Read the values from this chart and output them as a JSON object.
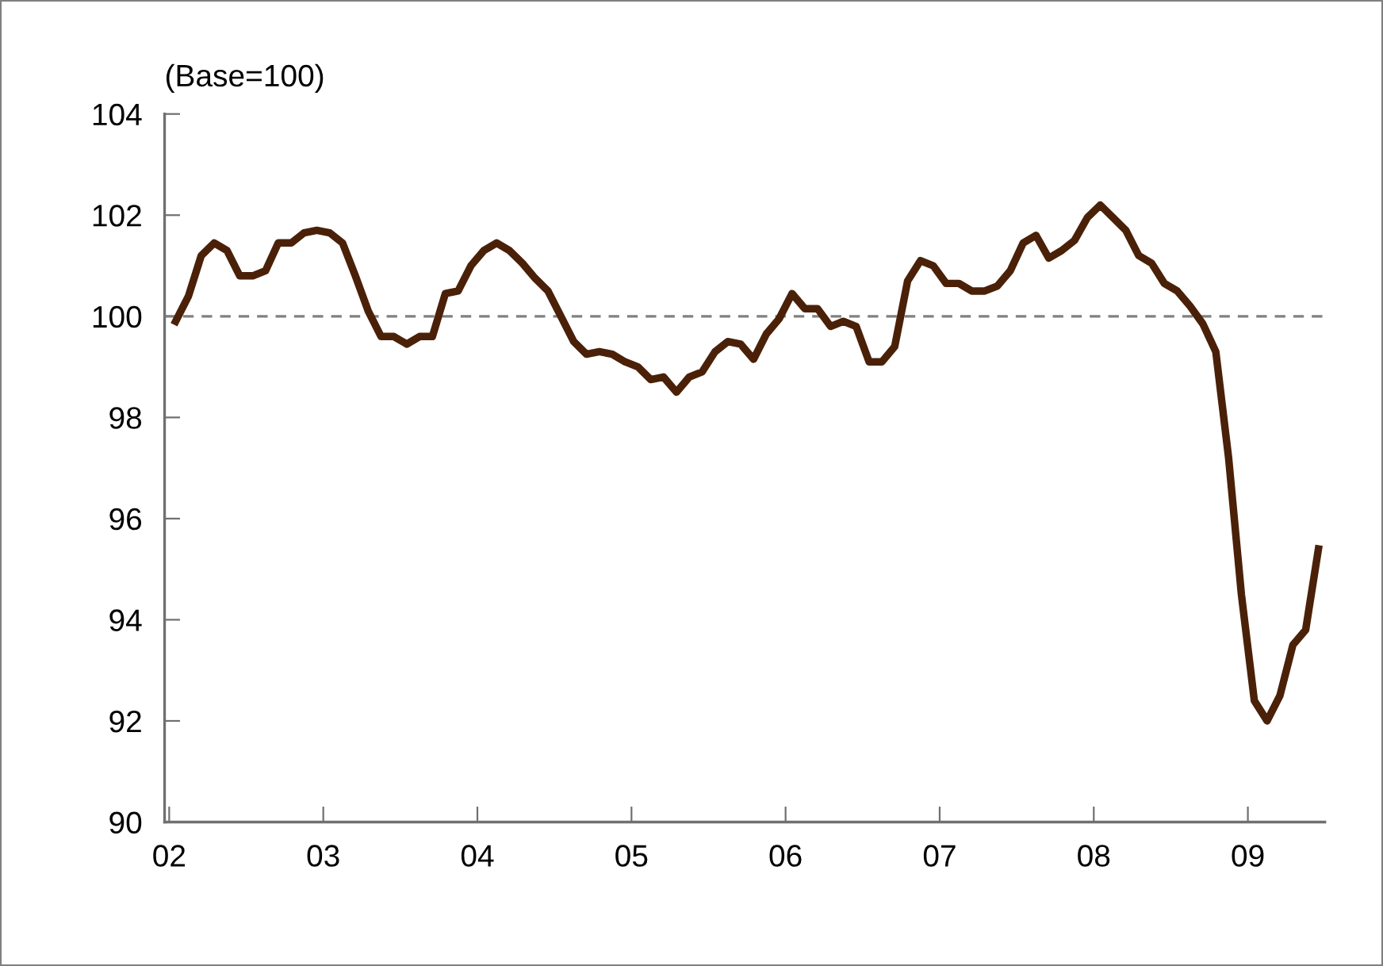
{
  "chart_data": {
    "type": "line",
    "ylabel": "(Base=100)",
    "x": [
      2002.042,
      2002.125,
      2002.208,
      2002.292,
      2002.375,
      2002.458,
      2002.542,
      2002.625,
      2002.708,
      2002.792,
      2002.875,
      2002.958,
      2003.042,
      2003.125,
      2003.208,
      2003.292,
      2003.375,
      2003.458,
      2003.542,
      2003.625,
      2003.708,
      2003.792,
      2003.875,
      2003.958,
      2004.042,
      2004.125,
      2004.208,
      2004.292,
      2004.375,
      2004.458,
      2004.542,
      2004.625,
      2004.708,
      2004.792,
      2004.875,
      2004.958,
      2005.042,
      2005.125,
      2005.208,
      2005.292,
      2005.375,
      2005.458,
      2005.542,
      2005.625,
      2005.708,
      2005.792,
      2005.875,
      2005.958,
      2006.042,
      2006.125,
      2006.208,
      2006.292,
      2006.375,
      2006.458,
      2006.542,
      2006.625,
      2006.708,
      2006.792,
      2006.875,
      2006.958,
      2007.042,
      2007.125,
      2007.208,
      2007.292,
      2007.375,
      2007.458,
      2007.542,
      2007.625,
      2007.708,
      2007.792,
      2007.875,
      2007.958,
      2008.042,
      2008.125,
      2008.208,
      2008.292,
      2008.375,
      2008.458,
      2008.542,
      2008.625,
      2008.708,
      2008.792,
      2008.875,
      2008.958,
      2009.042,
      2009.125,
      2009.208,
      2009.292,
      2009.375,
      2009.458
    ],
    "series": [
      {
        "color": "#4a2108",
        "values": [
          99.9,
          100.4,
          101.2,
          101.45,
          101.3,
          100.8,
          100.8,
          100.9,
          101.45,
          101.45,
          101.65,
          101.7,
          101.65,
          101.45,
          100.8,
          100.1,
          99.6,
          99.6,
          99.45,
          99.6,
          99.6,
          100.45,
          100.5,
          101.0,
          101.3,
          101.45,
          101.3,
          101.05,
          100.75,
          100.5,
          100.0,
          99.5,
          99.25,
          99.3,
          99.25,
          99.1,
          99.0,
          98.75,
          98.8,
          98.5,
          98.8,
          98.9,
          99.3,
          99.5,
          99.45,
          99.15,
          99.65,
          99.95,
          100.45,
          100.15,
          100.15,
          99.8,
          99.9,
          99.8,
          99.1,
          99.1,
          99.4,
          100.7,
          101.1,
          101.0,
          100.65,
          100.65,
          100.5,
          100.5,
          100.6,
          100.9,
          101.45,
          101.6,
          101.15,
          101.3,
          101.5,
          101.95,
          102.2,
          101.95,
          101.7,
          101.2,
          101.05,
          100.65,
          100.5,
          100.2,
          99.85,
          99.3,
          97.2,
          94.5,
          92.4,
          92.0,
          92.5,
          93.5,
          93.8,
          95.4
        ]
      }
    ],
    "xlim": [
      2001.97,
      2009.5
    ],
    "xticks": [
      {
        "value": 2002,
        "label": "02"
      },
      {
        "value": 2003,
        "label": "03"
      },
      {
        "value": 2004,
        "label": "04"
      },
      {
        "value": 2005,
        "label": "05"
      },
      {
        "value": 2006,
        "label": "06"
      },
      {
        "value": 2007,
        "label": "07"
      },
      {
        "value": 2008,
        "label": "08"
      },
      {
        "value": 2009,
        "label": "09"
      }
    ],
    "ylim": [
      90,
      104
    ],
    "yticks": [
      90,
      92,
      94,
      96,
      98,
      100,
      102,
      104
    ],
    "ref_lines": [
      {
        "axis": "y",
        "value": 100,
        "color": "#808080",
        "line_style": "dashed"
      }
    ],
    "grid": false,
    "legend": false,
    "marker": "none",
    "line_style": "solid"
  }
}
